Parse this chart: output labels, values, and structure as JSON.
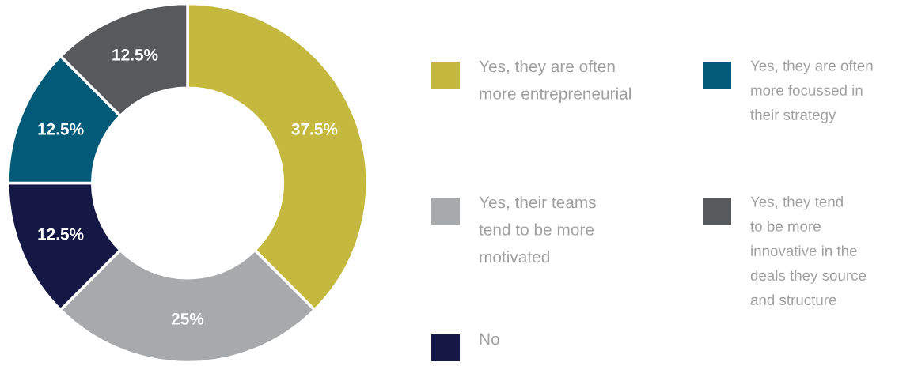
{
  "chart_data": {
    "type": "donut",
    "categories": [
      "Yes, they are often\nmore entrepreneurial",
      "Yes, their teams\ntend to be more\nmotivated",
      "No",
      "Yes, they are often\nmore focussed in\ntheir strategy",
      "Yes, they tend\nto be more\ninnovative in the\ndeals they source\nand structure"
    ],
    "values": [
      37.5,
      25,
      12.5,
      12.5,
      12.5
    ],
    "value_labels": [
      "37.5%",
      "25%",
      "12.5%",
      "12.5%",
      "12.5%"
    ],
    "colors": [
      "#c4b93e",
      "#a7a9ab",
      "#151744",
      "#005a78",
      "#58595b"
    ],
    "legend": "right"
  }
}
